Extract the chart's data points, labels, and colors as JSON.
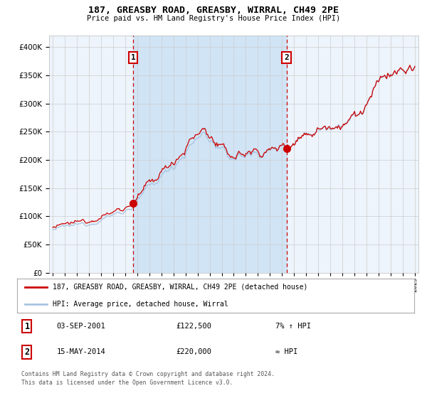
{
  "title": "187, GREASBY ROAD, GREASBY, WIRRAL, CH49 2PE",
  "subtitle": "Price paid vs. HM Land Registry's House Price Index (HPI)",
  "legend_line1": "187, GREASBY ROAD, GREASBY, WIRRAL, CH49 2PE (detached house)",
  "legend_line2": "HPI: Average price, detached house, Wirral",
  "marker1_date": "03-SEP-2001",
  "marker1_price": 122500,
  "marker1_label": "7% ↑ HPI",
  "marker2_date": "15-MAY-2014",
  "marker2_price": 220000,
  "marker2_label": "≈ HPI",
  "footnote1": "Contains HM Land Registry data © Crown copyright and database right 2024.",
  "footnote2": "This data is licensed under the Open Government Licence v3.0.",
  "hpi_color": "#a8c4e0",
  "property_color": "#cc0000",
  "plot_bg": "#eef4fb",
  "shaded_region_color": "#d0e4f5",
  "vline_color": "#cc0000",
  "marker_color": "#cc0000",
  "grid_color": "#cccccc",
  "ylim": [
    0,
    420000
  ],
  "yticks": [
    0,
    50000,
    100000,
    150000,
    200000,
    250000,
    300000,
    350000,
    400000
  ],
  "start_year": 1995,
  "end_year": 2025,
  "sale1_year": 2001.67,
  "sale2_year": 2014.37
}
